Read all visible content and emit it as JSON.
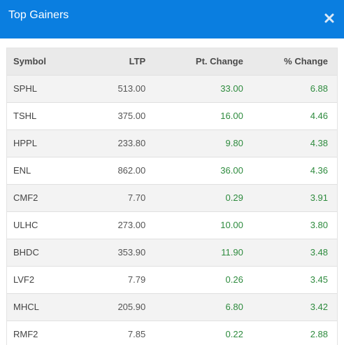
{
  "modal": {
    "title": "Top Gainers",
    "close_icon": "close-icon",
    "header_color": "#0a7ee0"
  },
  "table": {
    "columns": [
      "Symbol",
      "LTP",
      "Pt. Change",
      "% Change"
    ],
    "rows": [
      {
        "symbol": "SPHL",
        "ltp": "513.00",
        "pt_change": "33.00",
        "pct_change": "6.88"
      },
      {
        "symbol": "TSHL",
        "ltp": "375.00",
        "pt_change": "16.00",
        "pct_change": "4.46"
      },
      {
        "symbol": "HPPL",
        "ltp": "233.80",
        "pt_change": "9.80",
        "pct_change": "4.38"
      },
      {
        "symbol": "ENL",
        "ltp": "862.00",
        "pt_change": "36.00",
        "pct_change": "4.36"
      },
      {
        "symbol": "CMF2",
        "ltp": "7.70",
        "pt_change": "0.29",
        "pct_change": "3.91"
      },
      {
        "symbol": "ULHC",
        "ltp": "273.00",
        "pt_change": "10.00",
        "pct_change": "3.80"
      },
      {
        "symbol": "BHDC",
        "ltp": "353.90",
        "pt_change": "11.90",
        "pct_change": "3.48"
      },
      {
        "symbol": "LVF2",
        "ltp": "7.79",
        "pt_change": "0.26",
        "pct_change": "3.45"
      },
      {
        "symbol": "MHCL",
        "ltp": "205.90",
        "pt_change": "6.80",
        "pct_change": "3.42"
      },
      {
        "symbol": "RMF2",
        "ltp": "7.85",
        "pt_change": "0.22",
        "pct_change": "2.88"
      }
    ],
    "gain_color": "#2e8b3e"
  }
}
